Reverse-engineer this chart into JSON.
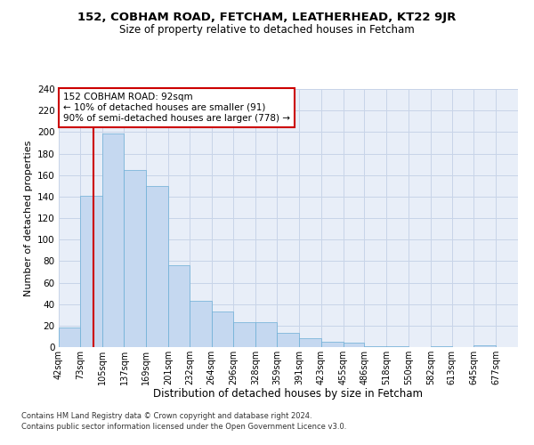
{
  "title1": "152, COBHAM ROAD, FETCHAM, LEATHERHEAD, KT22 9JR",
  "title2": "Size of property relative to detached houses in Fetcham",
  "xlabel": "Distribution of detached houses by size in Fetcham",
  "ylabel": "Number of detached properties",
  "footnote1": "Contains HM Land Registry data © Crown copyright and database right 2024.",
  "footnote2": "Contains public sector information licensed under the Open Government Licence v3.0.",
  "annotation_title": "152 COBHAM ROAD: 92sqm",
  "annotation_line1": "← 10% of detached houses are smaller (91)",
  "annotation_line2": "90% of semi-detached houses are larger (778) →",
  "property_size": 92,
  "bar_color": "#c5d8f0",
  "bar_edge_color": "#6baed6",
  "vline_color": "#cc0000",
  "annotation_box_color": "#ffffff",
  "annotation_box_edge": "#cc0000",
  "grid_color": "#c8d4e8",
  "background_color": "#e8eef8",
  "bins": [
    42,
    73,
    105,
    137,
    169,
    201,
    232,
    264,
    296,
    328,
    359,
    391,
    423,
    455,
    486,
    518,
    550,
    582,
    613,
    645,
    677,
    709
  ],
  "bin_labels": [
    "42sqm",
    "73sqm",
    "105sqm",
    "137sqm",
    "169sqm",
    "201sqm",
    "232sqm",
    "264sqm",
    "296sqm",
    "328sqm",
    "359sqm",
    "391sqm",
    "423sqm",
    "455sqm",
    "486sqm",
    "518sqm",
    "550sqm",
    "582sqm",
    "613sqm",
    "645sqm",
    "677sqm"
  ],
  "counts": [
    18,
    141,
    199,
    165,
    150,
    76,
    43,
    33,
    23,
    23,
    13,
    8,
    5,
    4,
    1,
    1,
    0,
    1,
    0,
    2,
    0
  ],
  "ylim": [
    0,
    240
  ],
  "yticks": [
    0,
    20,
    40,
    60,
    80,
    100,
    120,
    140,
    160,
    180,
    200,
    220,
    240
  ]
}
